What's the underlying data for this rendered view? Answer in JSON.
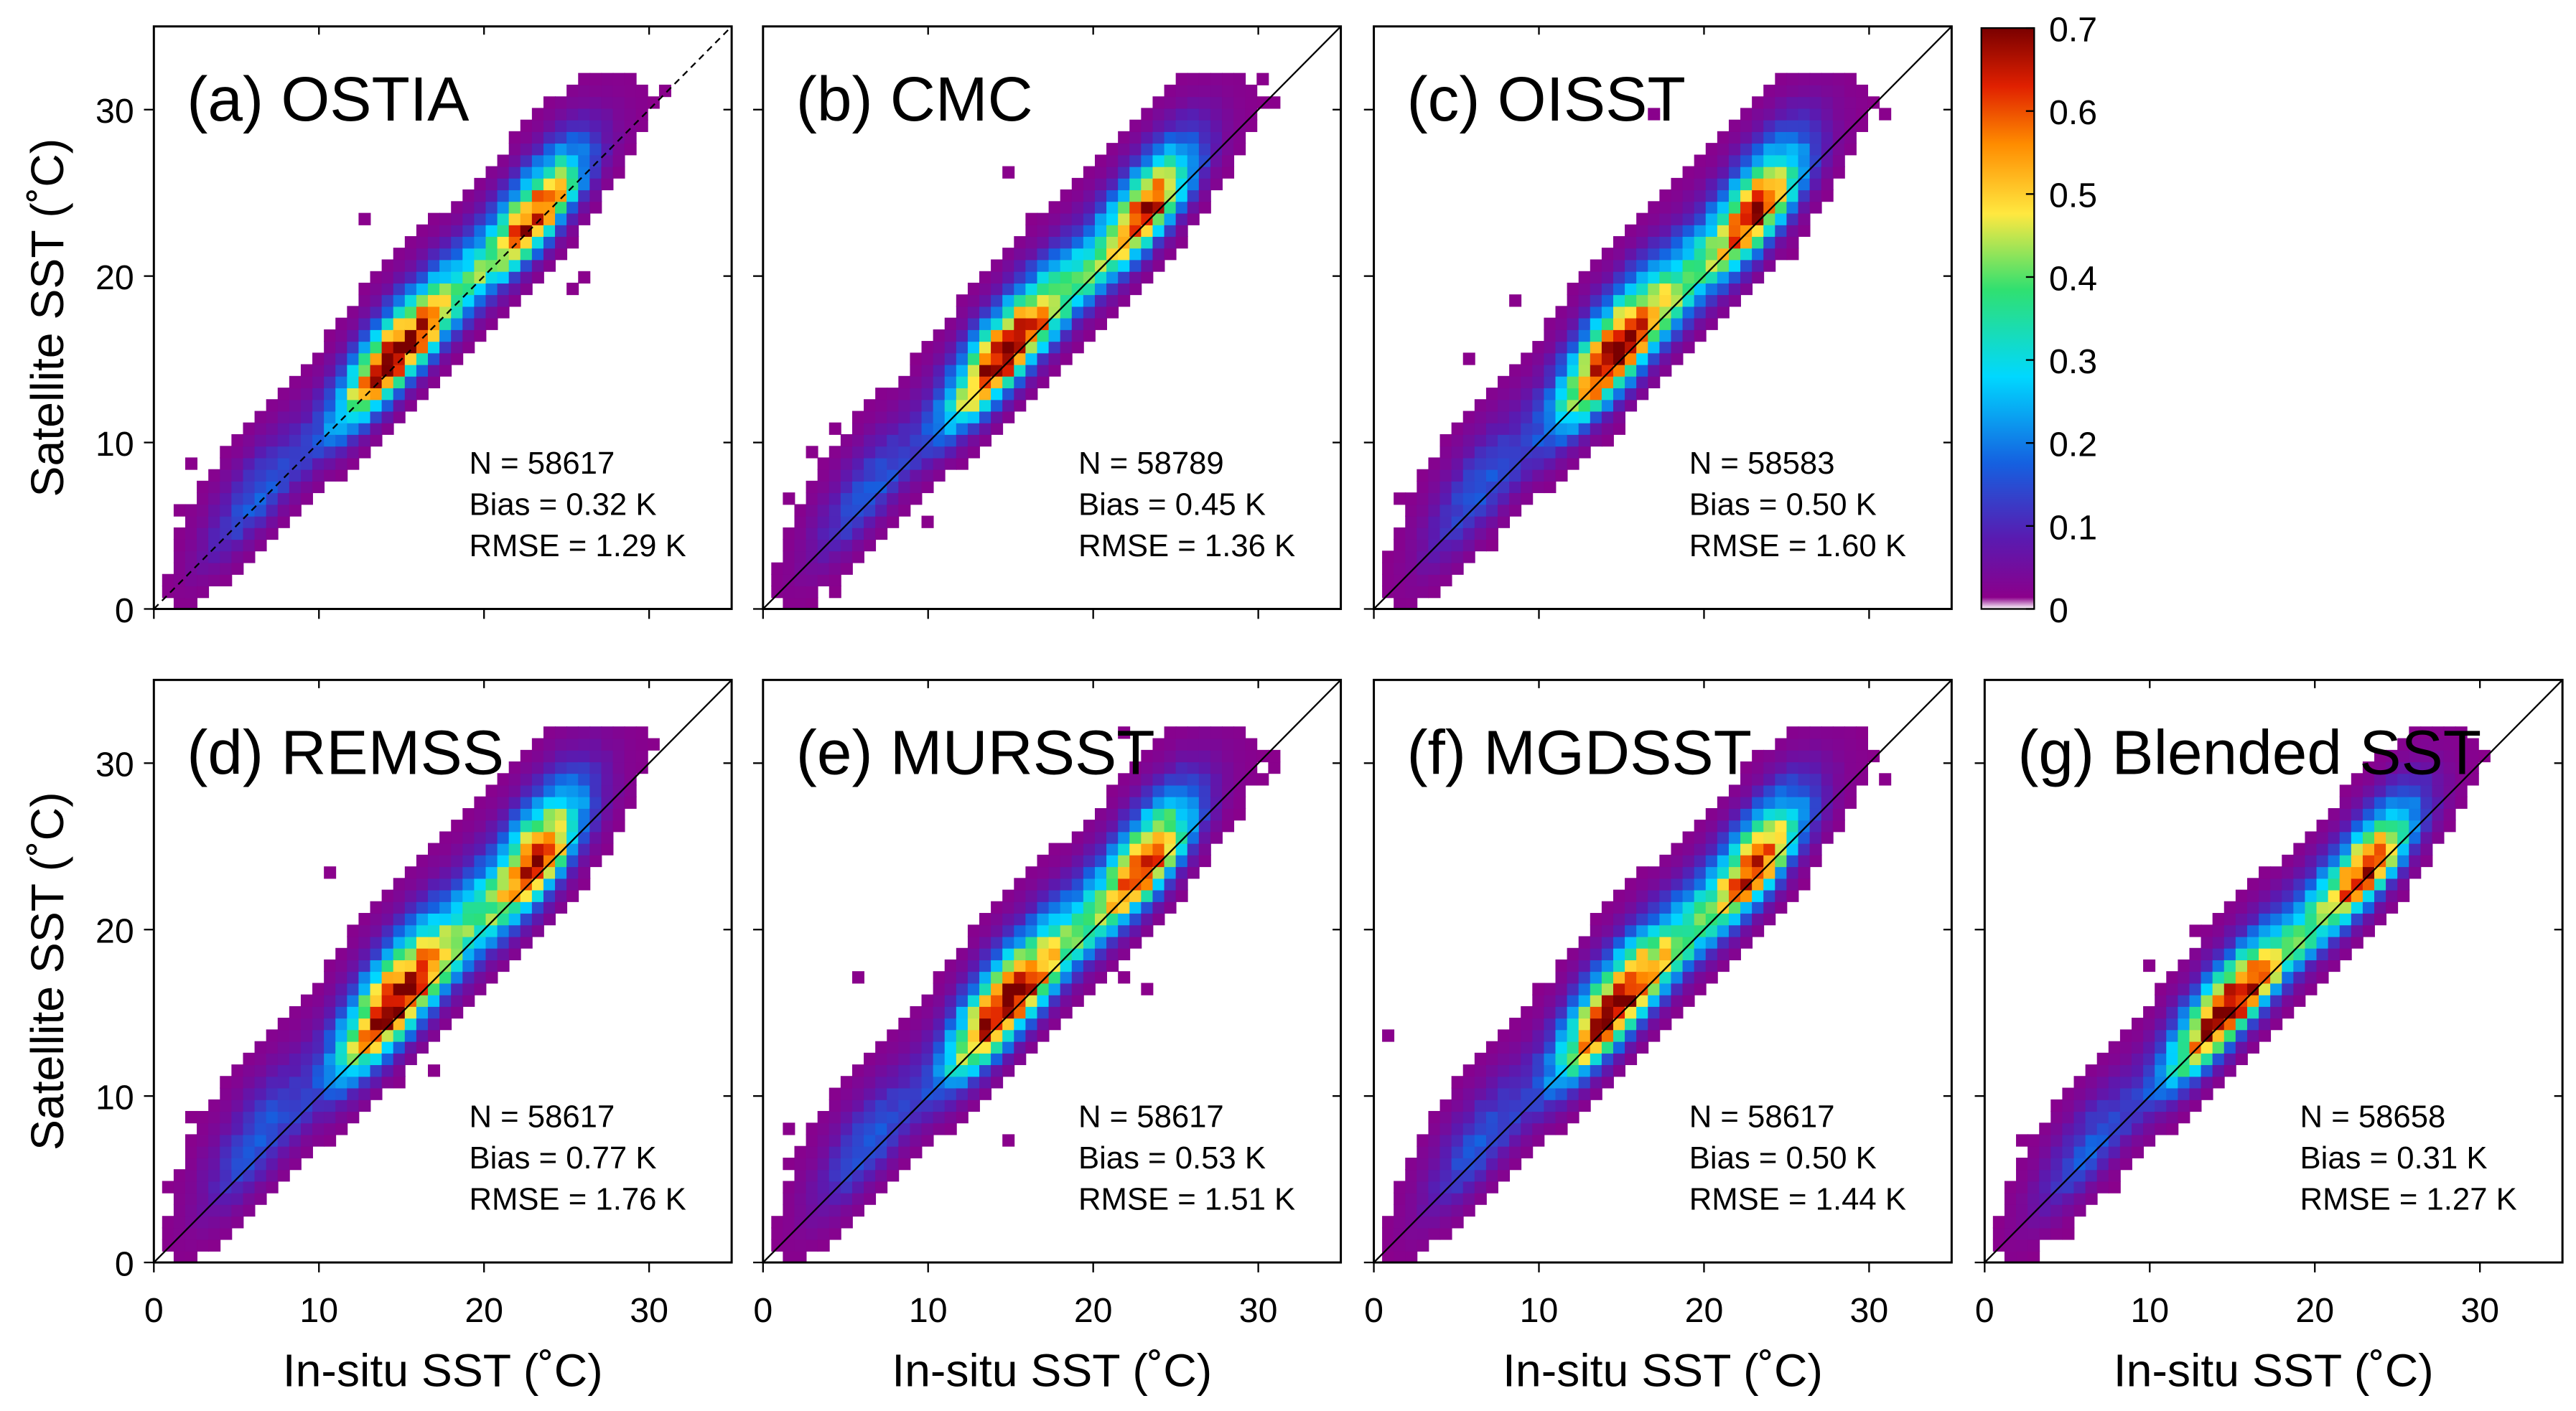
{
  "chart_data": {
    "type": "heatmap",
    "description_kind": "2D density scatter (fraction of points per bin, %)",
    "xlabel": "In-situ SST (˚C)",
    "ylabel": "Satellite SST (˚C)",
    "xlim": [
      0,
      35
    ],
    "ylim": [
      0,
      35
    ],
    "xticks": [
      "0",
      "10",
      "20",
      "30"
    ],
    "yticks": [
      "0",
      "10",
      "20",
      "30"
    ],
    "reference_line": "1:1",
    "colorbar": {
      "range": [
        0,
        0.7
      ],
      "ticks": [
        "0",
        "0.1",
        "0.2",
        "0.3",
        "0.4",
        "0.5",
        "0.6",
        "0.7"
      ],
      "colors": [
        "#ffffff",
        "#8b008b",
        "#5a1ab0",
        "#1560e0",
        "#00d8ff",
        "#30e070",
        "#ffe840",
        "#ff8c00",
        "#e02000",
        "#7a0000"
      ]
    },
    "panels": [
      {
        "title": "(a) OSTIA",
        "n": "N = 58617",
        "bias": "Bias = 0.32 K",
        "rmse": "RMSE = 1.29 K",
        "bias_k": 0.32,
        "rmse_k": 1.29,
        "dashed": true
      },
      {
        "title": "(b) CMC",
        "n": "N = 58789",
        "bias": "Bias = 0.45 K",
        "rmse": "RMSE = 1.36 K",
        "bias_k": 0.45,
        "rmse_k": 1.36,
        "dashed": false
      },
      {
        "title": "(c) OISST",
        "n": "N = 58583",
        "bias": "Bias = 0.50 K",
        "rmse": "RMSE = 1.60 K",
        "bias_k": 0.5,
        "rmse_k": 1.6,
        "dashed": false
      },
      {
        "title": "(d) REMSS",
        "n": "N = 58617",
        "bias": "Bias = 0.77 K",
        "rmse": "RMSE = 1.76 K",
        "bias_k": 0.77,
        "rmse_k": 1.76,
        "dashed": false
      },
      {
        "title": "(e) MURSST",
        "n": "N = 58617",
        "bias": "Bias = 0.53 K",
        "rmse": "RMSE = 1.51 K",
        "bias_k": 0.53,
        "rmse_k": 1.51,
        "dashed": false
      },
      {
        "title": "(f) MGDSST",
        "n": "N = 58617",
        "bias": "Bias = 0.50 K",
        "rmse": "RMSE = 1.44 K",
        "bias_k": 0.5,
        "rmse_k": 1.44,
        "dashed": false
      },
      {
        "title": "(g) Blended SST",
        "n": "N = 58658",
        "bias": "Bias = 0.31 K",
        "rmse": "RMSE = 1.27 K",
        "bias_k": 0.31,
        "rmse_k": 1.27,
        "dashed": false
      }
    ]
  }
}
